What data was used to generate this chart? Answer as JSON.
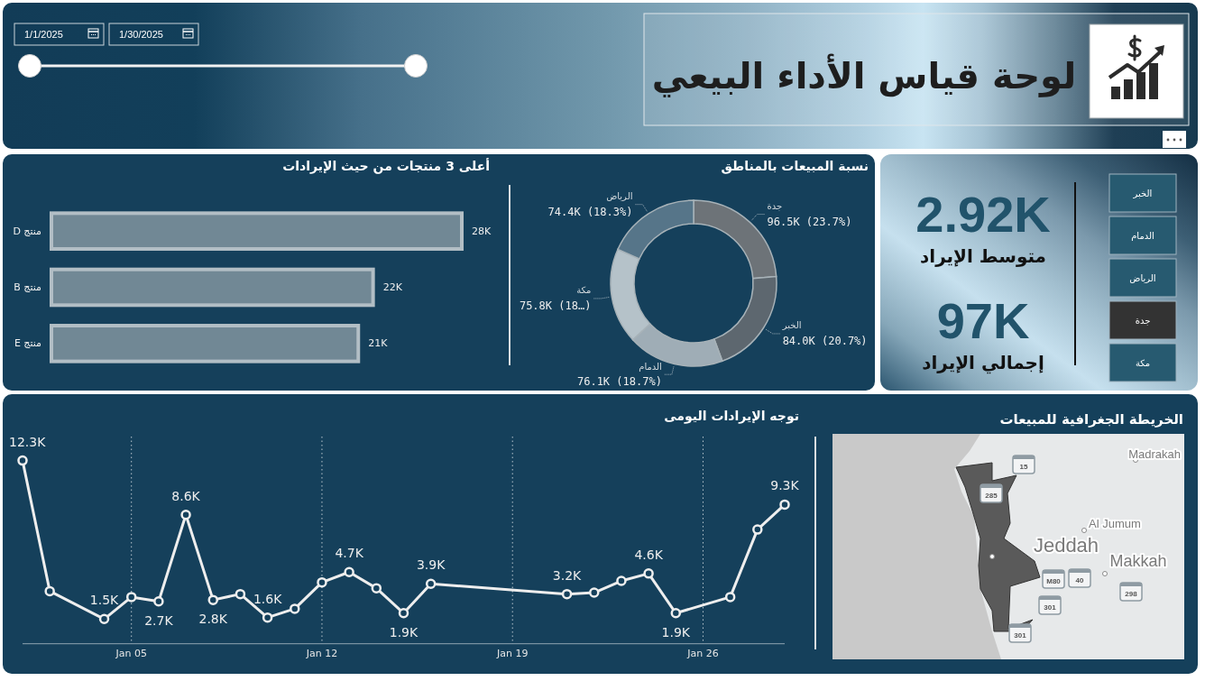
{
  "chart_data": [
    {
      "type": "other",
      "title": "لوحة قياس الأداء البيعي",
      "annotations": [
        "1/1/2025",
        "1/30/2025"
      ]
    },
    {
      "type": "bar",
      "orientation": "horizontal",
      "title": "أعلى 3 منتجات من حيث الإيرادات",
      "categories": [
        "منتج D",
        "منتج B",
        "منتج E"
      ],
      "values": [
        28,
        22,
        21
      ],
      "value_labels": [
        "28K",
        "22K",
        "21K"
      ],
      "color": "#718895"
    },
    {
      "type": "donut",
      "title": "نسبة المبيعات بالمناطق",
      "categories": [
        "جدة",
        "الخبر",
        "الدمام",
        "مكة",
        "الرياض"
      ],
      "values": [
        96500,
        84000,
        76100,
        75800,
        74400
      ],
      "value_labels": [
        "96.5K (23.7%)",
        "84.0K (20.7%)",
        "76.1K (18.7%)",
        "75.8K (18…)",
        "74.4K (18.3%)"
      ],
      "colors": [
        "#6d7378",
        "#5d676f",
        "#9fadb6",
        "#b5c2c9",
        "#567589"
      ]
    },
    {
      "type": "other",
      "annotations": [
        "2.92K",
        "متوسط الإيراد",
        "97K",
        "إجمالي الإيراد"
      ]
    },
    {
      "type": "other",
      "categories": [
        "الخبر",
        "الدمام",
        "الرياض",
        "جدة",
        "مكة"
      ],
      "colors": [
        "#275a70",
        "#275a70",
        "#275a70",
        "#333333",
        "#275a70"
      ]
    },
    {
      "type": "line",
      "title": "توجه الإيرادات اليومى",
      "x": [
        "2025-01-01",
        "2025-01-02",
        "2025-01-04",
        "2025-01-05",
        "2025-01-06",
        "2025-01-07",
        "2025-01-08",
        "2025-01-09",
        "2025-01-10",
        "2025-01-11",
        "2025-01-12",
        "2025-01-13",
        "2025-01-14",
        "2025-01-15",
        "2025-01-16",
        "2025-01-21",
        "2025-01-22",
        "2025-01-23",
        "2025-01-24",
        "2025-01-25",
        "2025-01-27",
        "2025-01-28",
        "2025-01-29"
      ],
      "values": [
        12.3,
        3.4,
        1.5,
        3.0,
        2.7,
        8.6,
        2.8,
        3.2,
        1.6,
        2.2,
        4.0,
        4.7,
        3.6,
        1.9,
        3.9,
        3.2,
        3.3,
        4.1,
        4.6,
        1.9,
        3.0,
        7.6,
        9.3
      ],
      "value_labels": [
        "12.3K",
        null,
        "1.5K",
        null,
        "2.7K",
        "8.6K",
        "2.8K",
        null,
        "1.6K",
        null,
        null,
        "4.7K",
        null,
        "1.9K",
        "3.9K",
        "3.2K",
        null,
        null,
        "4.6K",
        "1.9K",
        null,
        null,
        "9.3K"
      ],
      "color": "#eeeeee",
      "marker": "circle",
      "line_style": "solid",
      "grid": "x",
      "xlim": [
        "2025-01-01",
        "2025-01-29"
      ],
      "xticks": [
        {
          "value": "2025-01-05",
          "label": "Jan 05"
        },
        {
          "value": "2025-01-12",
          "label": "Jan 12"
        },
        {
          "value": "2025-01-19",
          "label": "Jan 19"
        },
        {
          "value": "2025-01-26",
          "label": "Jan 26"
        }
      ]
    },
    {
      "type": "other",
      "title": "الخريطة الجغرافية للمبيعات",
      "annotations": [
        "Madrakah",
        "Al Jumum",
        "Jeddah",
        "Makkah",
        "15",
        "285",
        "M80",
        "40",
        "298",
        "301",
        "301"
      ]
    }
  ]
}
